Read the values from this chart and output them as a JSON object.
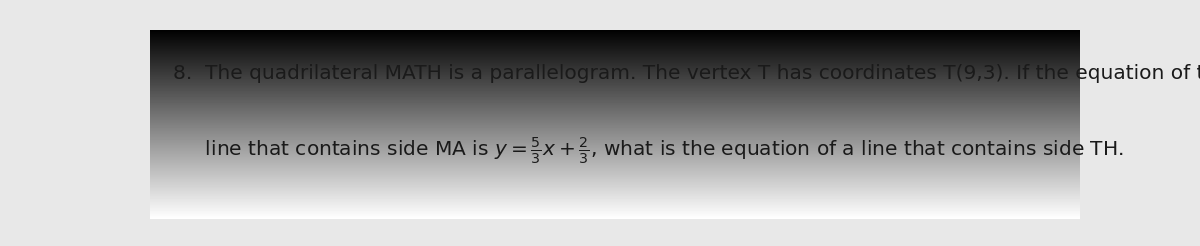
{
  "background_color": "#e8e8e8",
  "text_color": "#1a1a1a",
  "line1": "8.  The quadrilateral MATH is a parallelogram. The vertex T has coordinates T(9,3). If the equation of the",
  "line2_before": "     line that contains side MA is ",
  "line2_after": ", what is the equation of a line that contains side TH.",
  "font_size": 14.5,
  "fig_width": 12.0,
  "fig_height": 2.46
}
